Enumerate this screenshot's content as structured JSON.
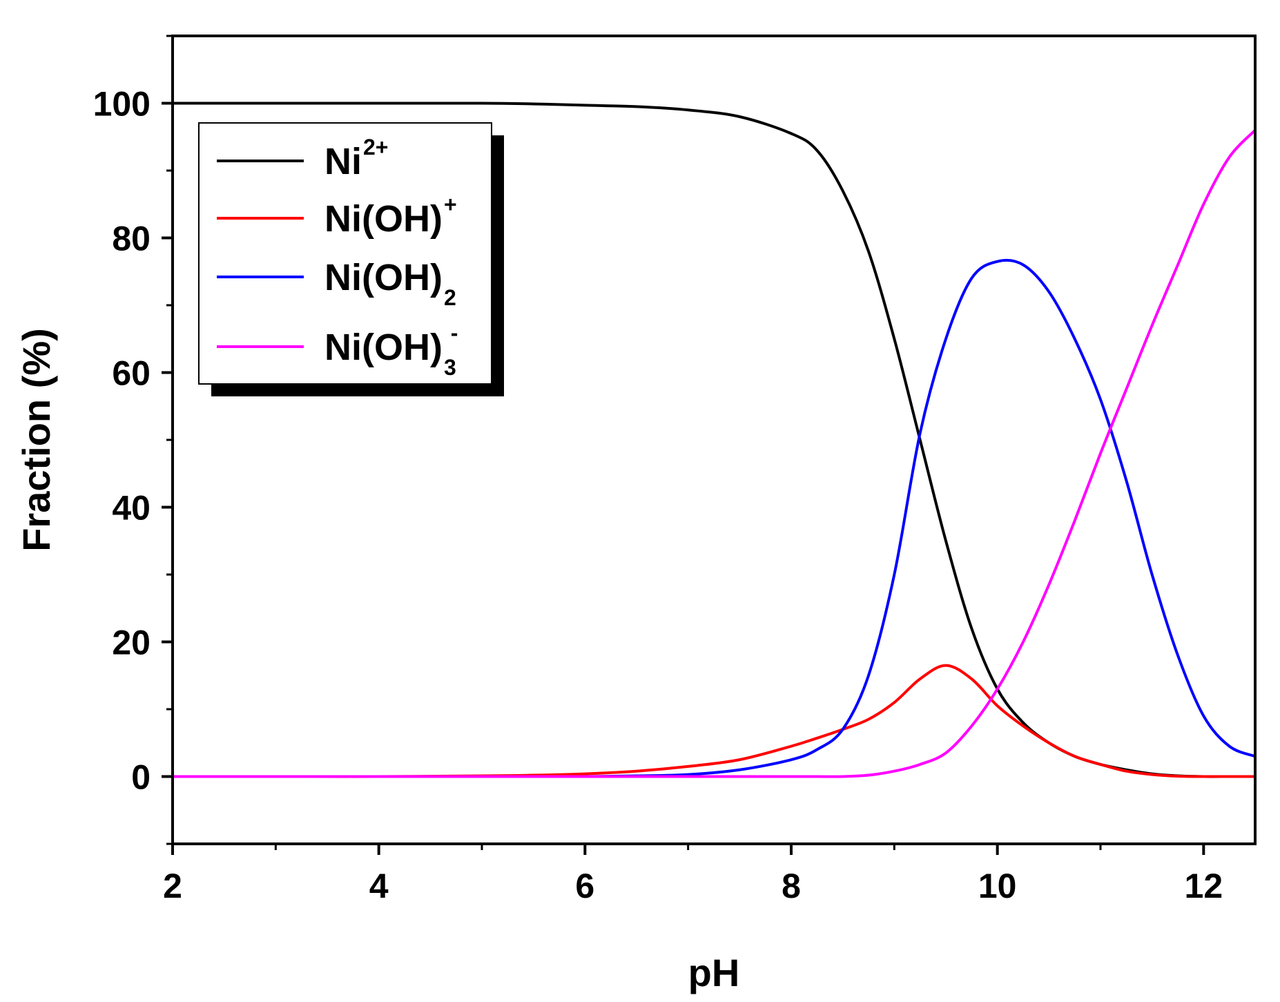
{
  "chart_data": {
    "type": "line",
    "title": "",
    "xlabel": "pH",
    "ylabel": "Fraction (%)",
    "xlim": [
      2,
      12.5
    ],
    "ylim": [
      -10,
      110
    ],
    "x_ticks": [
      2,
      4,
      6,
      8,
      10,
      12
    ],
    "x_tick_labels": [
      "2",
      "4",
      "6",
      "8",
      "10",
      "12"
    ],
    "y_ticks": [
      0,
      20,
      40,
      60,
      80,
      100
    ],
    "y_tick_labels": [
      "0",
      "20",
      "40",
      "60",
      "80",
      "100"
    ],
    "legend_position": "top-left",
    "x": [
      2,
      3,
      4,
      5,
      5.5,
      6,
      6.5,
      7,
      7.5,
      8,
      8.25,
      8.5,
      8.75,
      9,
      9.25,
      9.5,
      9.75,
      10,
      10.25,
      10.5,
      10.75,
      11,
      11.25,
      11.5,
      11.75,
      12,
      12.25,
      12.5
    ],
    "series": [
      {
        "name": "Ni",
        "sup": "2+",
        "sub": "",
        "color": "#000000",
        "values": [
          100,
          100,
          100,
          100,
          99.9,
          99.7,
          99.5,
          99,
          98,
          95.5,
          93,
          87,
          78,
          65,
          50,
          35,
          22,
          13,
          8,
          5,
          3,
          1.8,
          1,
          0.4,
          0.1,
          0,
          0,
          0
        ]
      },
      {
        "name": "Ni(OH)",
        "sup": "+",
        "sub": "",
        "color": "#ff0000",
        "values": [
          0,
          0,
          0,
          0.1,
          0.2,
          0.4,
          0.8,
          1.5,
          2.5,
          4.5,
          5.7,
          7,
          8.5,
          11,
          14.5,
          16.5,
          14.5,
          10.5,
          7.5,
          5,
          3,
          1.8,
          0.8,
          0.3,
          0.05,
          0,
          0,
          0
        ]
      },
      {
        "name": "Ni(OH)",
        "sup": "",
        "sub": "2",
        "color": "#0000ff",
        "values": [
          0,
          0,
          0,
          0,
          0,
          0,
          0.1,
          0.3,
          1,
          2.5,
          4,
          7,
          15,
          30,
          51,
          65,
          74,
          76.5,
          76,
          72,
          65,
          56,
          44,
          30,
          18,
          9,
          4.5,
          3
        ]
      },
      {
        "name": "Ni(OH)",
        "sup": "-",
        "sub": "3",
        "color": "#ff00ff",
        "values": [
          0,
          0,
          0,
          0,
          0,
          0,
          0,
          0,
          0,
          0,
          0,
          0,
          0.2,
          0.8,
          1.8,
          3.5,
          7.5,
          13,
          20,
          28.5,
          38,
          48,
          57.5,
          67,
          76,
          85,
          92,
          96
        ]
      }
    ]
  }
}
